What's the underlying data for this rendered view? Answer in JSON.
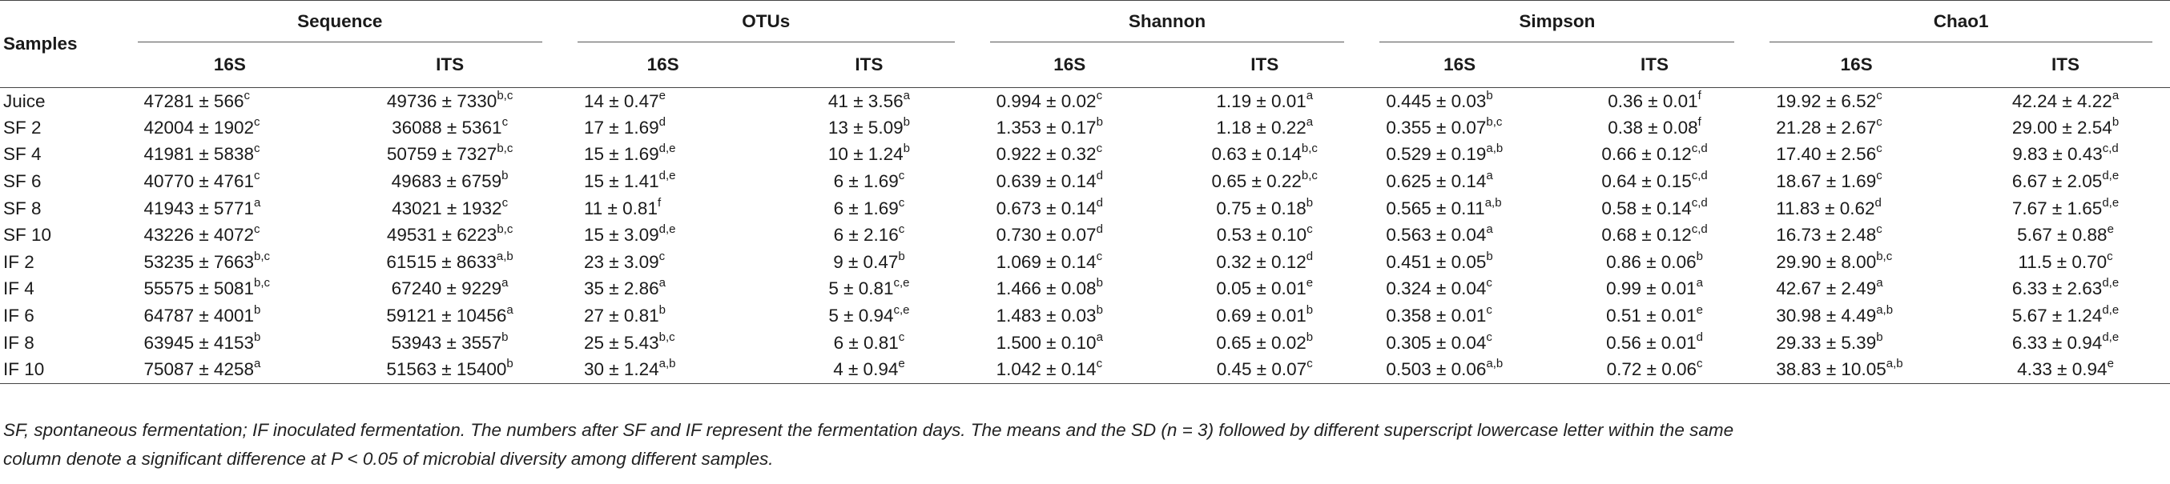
{
  "header": {
    "samples_label": "Samples",
    "groups": [
      "Sequence",
      "OTUs",
      "Shannon",
      "Simpson",
      "Chao1"
    ],
    "subheaders": [
      "16S",
      "ITS"
    ]
  },
  "rows": [
    {
      "label": "Juice",
      "cells": [
        {
          "v": "47281 ± 566",
          "s": "c"
        },
        {
          "v": "49736 ± 7330",
          "s": "b,c"
        },
        {
          "v": "14 ± 0.47",
          "s": "e"
        },
        {
          "v": "41 ± 3.56",
          "s": "a"
        },
        {
          "v": "0.994 ± 0.02",
          "s": "c"
        },
        {
          "v": "1.19 ± 0.01",
          "s": "a"
        },
        {
          "v": "0.445 ± 0.03",
          "s": "b"
        },
        {
          "v": "0.36 ± 0.01",
          "s": "f"
        },
        {
          "v": "19.92 ± 6.52",
          "s": "c"
        },
        {
          "v": "42.24 ± 4.22",
          "s": "a"
        }
      ]
    },
    {
      "label": "SF 2",
      "cells": [
        {
          "v": "42004 ± 1902",
          "s": "c"
        },
        {
          "v": "36088 ± 5361",
          "s": "c"
        },
        {
          "v": "17 ± 1.69",
          "s": "d"
        },
        {
          "v": "13 ± 5.09",
          "s": "b"
        },
        {
          "v": "1.353 ± 0.17",
          "s": "b"
        },
        {
          "v": "1.18 ± 0.22",
          "s": "a"
        },
        {
          "v": "0.355 ± 0.07",
          "s": "b,c"
        },
        {
          "v": "0.38 ± 0.08",
          "s": "f"
        },
        {
          "v": "21.28 ± 2.67",
          "s": "c"
        },
        {
          "v": "29.00 ± 2.54",
          "s": "b"
        }
      ]
    },
    {
      "label": "SF 4",
      "cells": [
        {
          "v": "41981 ± 5838",
          "s": "c"
        },
        {
          "v": "50759 ± 7327",
          "s": "b,c"
        },
        {
          "v": "15 ± 1.69",
          "s": "d,e"
        },
        {
          "v": "10 ± 1.24",
          "s": "b"
        },
        {
          "v": "0.922 ± 0.32",
          "s": "c"
        },
        {
          "v": "0.63 ± 0.14",
          "s": "b,c"
        },
        {
          "v": "0.529 ± 0.19",
          "s": "a,b"
        },
        {
          "v": "0.66 ± 0.12",
          "s": "c,d"
        },
        {
          "v": "17.40 ± 2.56",
          "s": "c"
        },
        {
          "v": "9.83 ± 0.43",
          "s": "c,d"
        }
      ]
    },
    {
      "label": "SF 6",
      "cells": [
        {
          "v": "40770 ± 4761",
          "s": "c"
        },
        {
          "v": "49683 ± 6759",
          "s": "b"
        },
        {
          "v": "15 ± 1.41",
          "s": "d,e"
        },
        {
          "v": "6 ± 1.69",
          "s": "c"
        },
        {
          "v": "0.639 ± 0.14",
          "s": "d"
        },
        {
          "v": "0.65 ± 0.22",
          "s": "b,c"
        },
        {
          "v": "0.625 ± 0.14",
          "s": "a"
        },
        {
          "v": "0.64 ± 0.15",
          "s": "c,d"
        },
        {
          "v": "18.67 ± 1.69",
          "s": "c"
        },
        {
          "v": "6.67 ± 2.05",
          "s": "d,e"
        }
      ]
    },
    {
      "label": "SF 8",
      "cells": [
        {
          "v": "41943 ± 5771",
          "s": "a"
        },
        {
          "v": "43021 ± 1932",
          "s": "c"
        },
        {
          "v": "11 ± 0.81",
          "s": "f"
        },
        {
          "v": "6 ± 1.69",
          "s": "c"
        },
        {
          "v": "0.673 ± 0.14",
          "s": "d"
        },
        {
          "v": "0.75 ± 0.18",
          "s": "b"
        },
        {
          "v": "0.565 ± 0.11",
          "s": "a,b"
        },
        {
          "v": "0.58 ± 0.14",
          "s": "c,d"
        },
        {
          "v": "11.83 ± 0.62",
          "s": "d"
        },
        {
          "v": "7.67 ± 1.65",
          "s": "d,e"
        }
      ]
    },
    {
      "label": "SF 10",
      "cells": [
        {
          "v": "43226 ± 4072",
          "s": "c"
        },
        {
          "v": "49531 ± 6223",
          "s": "b,c"
        },
        {
          "v": "15 ± 3.09",
          "s": "d,e"
        },
        {
          "v": "6 ± 2.16",
          "s": "c"
        },
        {
          "v": "0.730 ± 0.07",
          "s": "d"
        },
        {
          "v": "0.53 ± 0.10",
          "s": "c"
        },
        {
          "v": "0.563 ± 0.04",
          "s": "a"
        },
        {
          "v": "0.68 ± 0.12",
          "s": "c,d"
        },
        {
          "v": "16.73 ± 2.48",
          "s": "c"
        },
        {
          "v": "5.67 ± 0.88",
          "s": "e"
        }
      ]
    },
    {
      "label": "IF 2",
      "cells": [
        {
          "v": "53235 ± 7663",
          "s": "b,c"
        },
        {
          "v": "61515 ± 8633",
          "s": "a,b"
        },
        {
          "v": "23 ± 3.09",
          "s": "c"
        },
        {
          "v": "9 ± 0.47",
          "s": "b"
        },
        {
          "v": "1.069 ± 0.14",
          "s": "c"
        },
        {
          "v": "0.32 ± 0.12",
          "s": "d"
        },
        {
          "v": "0.451 ± 0.05",
          "s": "b"
        },
        {
          "v": "0.86 ± 0.06",
          "s": "b"
        },
        {
          "v": "29.90 ± 8.00",
          "s": "b,c"
        },
        {
          "v": "11.5 ± 0.70",
          "s": "c"
        }
      ]
    },
    {
      "label": "IF 4",
      "cells": [
        {
          "v": "55575 ± 5081",
          "s": "b,c"
        },
        {
          "v": "67240 ± 9229",
          "s": "a"
        },
        {
          "v": "35 ± 2.86",
          "s": "a"
        },
        {
          "v": "5 ± 0.81",
          "s": "c,e"
        },
        {
          "v": "1.466 ± 0.08",
          "s": "b"
        },
        {
          "v": "0.05 ± 0.01",
          "s": "e"
        },
        {
          "v": "0.324 ± 0.04",
          "s": "c"
        },
        {
          "v": "0.99 ± 0.01",
          "s": "a"
        },
        {
          "v": "42.67 ± 2.49",
          "s": "a"
        },
        {
          "v": "6.33 ± 2.63",
          "s": "d,e"
        }
      ]
    },
    {
      "label": "IF 6",
      "cells": [
        {
          "v": "64787 ± 4001",
          "s": "b"
        },
        {
          "v": "59121 ± 10456",
          "s": "a"
        },
        {
          "v": "27 ± 0.81",
          "s": "b"
        },
        {
          "v": "5 ± 0.94",
          "s": "c,e"
        },
        {
          "v": "1.483 ± 0.03",
          "s": "b"
        },
        {
          "v": "0.69 ± 0.01",
          "s": "b"
        },
        {
          "v": "0.358 ± 0.01",
          "s": "c"
        },
        {
          "v": "0.51 ± 0.01",
          "s": "e"
        },
        {
          "v": "30.98 ± 4.49",
          "s": "a,b"
        },
        {
          "v": "5.67 ± 1.24",
          "s": "d,e"
        }
      ]
    },
    {
      "label": "IF 8",
      "cells": [
        {
          "v": "63945 ± 4153",
          "s": "b"
        },
        {
          "v": "53943 ± 3557",
          "s": "b"
        },
        {
          "v": "25 ± 5.43",
          "s": "b,c"
        },
        {
          "v": "6 ± 0.81",
          "s": "c"
        },
        {
          "v": "1.500 ± 0.10",
          "s": "a"
        },
        {
          "v": "0.65 ± 0.02",
          "s": "b"
        },
        {
          "v": "0.305 ± 0.04",
          "s": "c"
        },
        {
          "v": "0.56 ± 0.01",
          "s": "d"
        },
        {
          "v": "29.33 ± 5.39",
          "s": "b"
        },
        {
          "v": "6.33 ± 0.94",
          "s": "d,e"
        }
      ]
    },
    {
      "label": "IF 10",
      "cells": [
        {
          "v": "75087 ± 4258",
          "s": "a"
        },
        {
          "v": "51563 ± 15400",
          "s": "b"
        },
        {
          "v": "30 ± 1.24",
          "s": "a,b"
        },
        {
          "v": "4 ± 0.94",
          "s": "e"
        },
        {
          "v": "1.042 ± 0.14",
          "s": "c"
        },
        {
          "v": "0.45 ± 0.07",
          "s": "c"
        },
        {
          "v": "0.503 ± 0.06",
          "s": "a,b"
        },
        {
          "v": "0.72 ± 0.06",
          "s": "c"
        },
        {
          "v": "38.83 ± 10.05",
          "s": "a,b"
        },
        {
          "v": "4.33 ± 0.94",
          "s": "e"
        }
      ]
    }
  ],
  "footnote": {
    "line1": "SF, spontaneous fermentation; IF inoculated fermentation. The numbers after SF and IF represent the fermentation days. The means and the SD (n = 3) followed by different superscript lowercase letter within the same",
    "line2": "column denote a significant difference at P < 0.05 of microbial diversity among different samples."
  }
}
